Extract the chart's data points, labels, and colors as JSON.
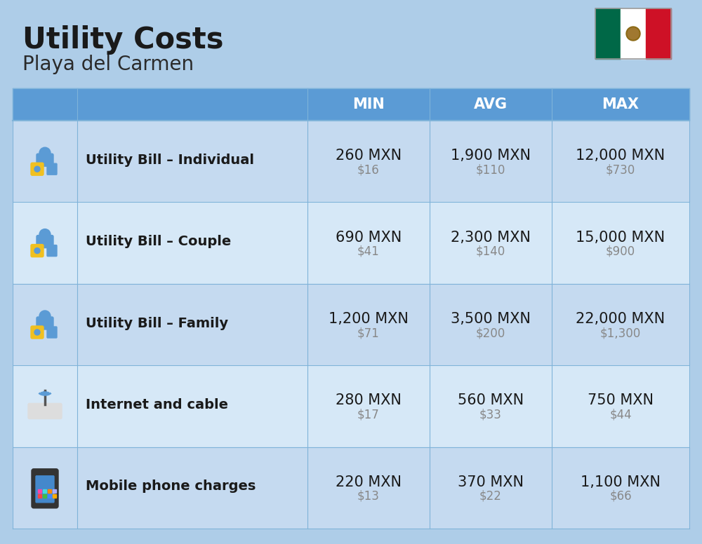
{
  "title": "Utility Costs",
  "subtitle": "Playa del Carmen",
  "background_color": "#aecde8",
  "header_bg_color": "#5b9bd5",
  "header_text_color": "#ffffff",
  "row_bg_color_1": "#c5daf0",
  "row_bg_color_2": "#d6e8f7",
  "cell_border_color": "#7fb3d9",
  "col_headers": [
    "MIN",
    "AVG",
    "MAX"
  ],
  "rows": [
    {
      "label": "Utility Bill – Individual",
      "min_mxn": "260 MXN",
      "min_usd": "$16",
      "avg_mxn": "1,900 MXN",
      "avg_usd": "$110",
      "max_mxn": "12,000 MXN",
      "max_usd": "$730"
    },
    {
      "label": "Utility Bill – Couple",
      "min_mxn": "690 MXN",
      "min_usd": "$41",
      "avg_mxn": "2,300 MXN",
      "avg_usd": "$140",
      "max_mxn": "15,000 MXN",
      "max_usd": "$900"
    },
    {
      "label": "Utility Bill – Family",
      "min_mxn": "1,200 MXN",
      "min_usd": "$71",
      "avg_mxn": "3,500 MXN",
      "avg_usd": "$200",
      "max_mxn": "22,000 MXN",
      "max_usd": "$1,300"
    },
    {
      "label": "Internet and cable",
      "min_mxn": "280 MXN",
      "min_usd": "$17",
      "avg_mxn": "560 MXN",
      "avg_usd": "$33",
      "max_mxn": "750 MXN",
      "max_usd": "$44"
    },
    {
      "label": "Mobile phone charges",
      "min_mxn": "220 MXN",
      "min_usd": "$13",
      "avg_mxn": "370 MXN",
      "avg_usd": "$22",
      "max_mxn": "1,100 MXN",
      "max_usd": "$66"
    }
  ],
  "title_fontsize": 30,
  "subtitle_fontsize": 20,
  "header_fontsize": 15,
  "label_fontsize": 14,
  "value_fontsize": 15,
  "usd_fontsize": 12,
  "usd_color": "#888888",
  "flag_green": "#006847",
  "flag_white": "#ffffff",
  "flag_red": "#ce1126"
}
